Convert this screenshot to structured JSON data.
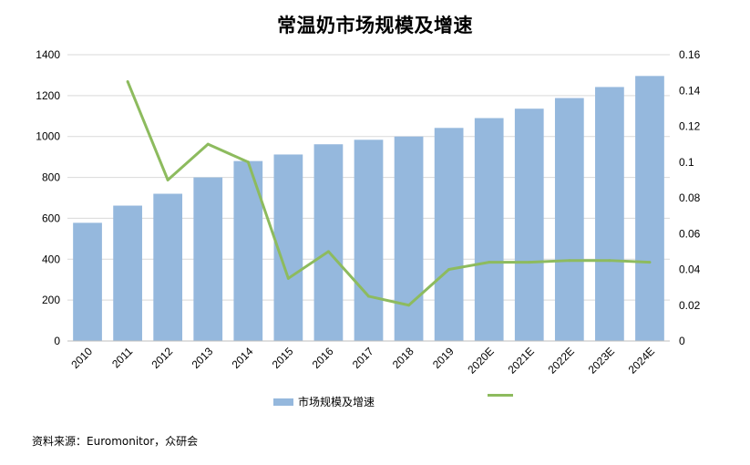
{
  "chart_data": {
    "type": "bar",
    "title": "常温奶市场规模及增速",
    "categories": [
      "2010",
      "2011",
      "2012",
      "2013",
      "2014",
      "2015",
      "2016",
      "2017",
      "2018",
      "2019",
      "2020E",
      "2021E",
      "2022E",
      "2023E",
      "2024E"
    ],
    "series": [
      {
        "name": "市场规模及增速",
        "type": "bar",
        "axis": "left",
        "color": "#95b8dd",
        "values": [
          578,
          662,
          720,
          800,
          880,
          912,
          962,
          984,
          1000,
          1042,
          1090,
          1136,
          1188,
          1242,
          1296
        ]
      },
      {
        "name": "",
        "type": "line",
        "axis": "right",
        "color": "#8dbb5e",
        "values": [
          null,
          0.145,
          0.09,
          0.11,
          0.1,
          0.035,
          0.05,
          0.025,
          0.02,
          0.04,
          0.044,
          0.044,
          0.045,
          0.045,
          0.044
        ]
      }
    ],
    "y_left": {
      "ylim": [
        0,
        1400
      ],
      "ticks": [
        "0",
        "200",
        "400",
        "600",
        "800",
        "1000",
        "1200",
        "1400"
      ]
    },
    "y_right": {
      "ylim": [
        0,
        0.16
      ],
      "ticks": [
        "0",
        "0.02",
        "0.04",
        "0.06",
        "0.08",
        "0.1",
        "0.12",
        "0.14",
        "0.16"
      ]
    },
    "xlabel": "",
    "ylabel": "",
    "grid": true,
    "legend_position": "bottom"
  },
  "legend": {
    "bar_label": "市场规模及增速",
    "line_label": ""
  },
  "source_note": "资料来源：Euromonitor，众研会"
}
